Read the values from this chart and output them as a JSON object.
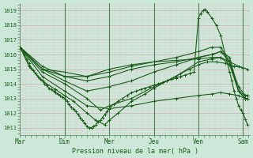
{
  "xlabel": "Pression niveau de la mer( hPa )",
  "background_color": "#cce8d8",
  "plot_bg_color": "#cce8d8",
  "minor_grid_color": "#e8c8d0",
  "major_grid_color": "#d4a8b8",
  "line_color": "#1a5c1a",
  "marker_color": "#1a5c1a",
  "vline_color": "#5a7a5a",
  "ylim": [
    1010.5,
    1019.5
  ],
  "xlim": [
    0.0,
    5.15
  ],
  "yticks": [
    1011,
    1012,
    1013,
    1014,
    1015,
    1016,
    1017,
    1018,
    1019
  ],
  "xtick_labels": [
    "Mar",
    "Dim",
    "Mer",
    "Jeu",
    "Ven",
    "Sam"
  ],
  "xtick_positions": [
    0.0,
    1.0,
    2.0,
    3.0,
    4.0,
    5.0
  ],
  "series": [
    [
      0.0,
      1016.5,
      0.05,
      1016.3,
      0.1,
      1016.0,
      0.15,
      1015.7,
      0.2,
      1015.4,
      0.25,
      1015.1,
      0.3,
      1014.9,
      0.35,
      1014.7,
      0.4,
      1014.5,
      0.45,
      1014.3,
      0.5,
      1014.2,
      0.55,
      1014.0,
      0.6,
      1013.9,
      0.65,
      1013.7,
      0.7,
      1013.6,
      0.75,
      1013.5,
      0.8,
      1013.4,
      0.85,
      1013.3,
      0.9,
      1013.2,
      0.95,
      1013.1,
      1.0,
      1013.0,
      1.05,
      1012.8,
      1.1,
      1012.6,
      1.15,
      1012.4,
      1.2,
      1012.3,
      1.25,
      1012.1,
      1.3,
      1011.9,
      1.35,
      1011.7,
      1.4,
      1011.5,
      1.45,
      1011.3,
      1.5,
      1011.1,
      1.55,
      1011.0,
      1.6,
      1011.0,
      1.65,
      1011.1,
      1.7,
      1011.2,
      1.75,
      1011.4,
      1.8,
      1011.5,
      1.85,
      1011.7,
      1.9,
      1011.9,
      1.95,
      1012.1,
      2.0,
      1012.3,
      2.1,
      1012.6,
      2.2,
      1012.8,
      2.3,
      1013.0,
      2.4,
      1013.2,
      2.5,
      1013.4,
      2.6,
      1013.5,
      2.7,
      1013.6,
      2.8,
      1013.7,
      2.9,
      1013.8,
      3.0,
      1013.9,
      3.1,
      1014.0,
      3.2,
      1014.1,
      3.3,
      1014.2,
      3.4,
      1014.3,
      3.5,
      1014.4,
      3.6,
      1014.5,
      3.7,
      1014.6,
      3.8,
      1014.7,
      3.9,
      1014.8,
      4.0,
      1018.5,
      4.05,
      1018.8,
      4.1,
      1019.0,
      4.15,
      1019.1,
      4.2,
      1018.9,
      4.3,
      1018.5,
      4.4,
      1018.0,
      4.5,
      1017.3,
      4.6,
      1016.0,
      4.7,
      1014.8,
      4.75,
      1014.2,
      4.8,
      1013.5,
      4.85,
      1013.0,
      4.9,
      1012.5,
      4.95,
      1012.2,
      5.0,
      1012.0,
      5.05,
      1011.6,
      5.1,
      1011.2
    ],
    [
      0.0,
      1016.5,
      0.2,
      1015.2,
      0.5,
      1014.2,
      0.8,
      1013.6,
      1.0,
      1013.2,
      1.2,
      1012.8,
      1.5,
      1012.0,
      1.7,
      1011.5,
      1.9,
      1011.2,
      2.0,
      1011.5,
      2.2,
      1012.0,
      2.5,
      1012.8,
      2.8,
      1013.3,
      3.0,
      1013.7,
      3.3,
      1014.2,
      3.6,
      1014.7,
      3.8,
      1015.0,
      4.0,
      1015.3,
      4.2,
      1015.5,
      4.4,
      1015.5,
      4.6,
      1015.4,
      4.8,
      1015.2,
      5.0,
      1015.1
    ],
    [
      0.0,
      1016.5,
      0.5,
      1014.8,
      1.0,
      1014.0,
      1.5,
      1013.0,
      1.8,
      1012.2,
      2.0,
      1012.5,
      2.5,
      1013.0,
      3.0,
      1013.8,
      3.5,
      1014.5,
      4.0,
      1015.5,
      4.3,
      1015.7,
      4.5,
      1015.8,
      4.7,
      1015.5,
      4.9,
      1015.2,
      5.1,
      1015.0
    ],
    [
      0.0,
      1016.5,
      0.5,
      1015.0,
      1.0,
      1014.2,
      1.5,
      1013.5,
      2.0,
      1013.8,
      2.5,
      1014.2,
      3.0,
      1014.8,
      3.5,
      1015.3,
      4.0,
      1015.8,
      4.3,
      1016.0,
      4.5,
      1016.2,
      4.7,
      1015.8,
      4.9,
      1013.5,
      5.05,
      1013.0,
      5.1,
      1013.0
    ],
    [
      0.0,
      1016.5,
      0.5,
      1015.2,
      1.0,
      1014.5,
      1.5,
      1014.5,
      2.0,
      1014.8,
      2.5,
      1015.2,
      3.0,
      1015.5,
      3.5,
      1015.8,
      4.0,
      1016.2,
      4.3,
      1016.5,
      4.5,
      1016.5,
      4.7,
      1015.5,
      4.9,
      1013.8,
      5.05,
      1013.2,
      5.1,
      1013.2
    ],
    [
      0.0,
      1016.5,
      0.5,
      1015.0,
      1.0,
      1014.8,
      1.5,
      1014.5,
      2.0,
      1015.0,
      2.5,
      1015.3,
      3.0,
      1015.5,
      3.5,
      1015.6,
      4.0,
      1015.7,
      4.3,
      1015.8,
      4.5,
      1015.8,
      4.7,
      1015.3,
      4.9,
      1013.5,
      5.05,
      1013.0,
      5.1,
      1013.0
    ],
    [
      0.0,
      1016.5,
      0.5,
      1015.0,
      1.0,
      1014.5,
      1.5,
      1014.2,
      2.0,
      1014.5,
      2.5,
      1015.0,
      3.0,
      1015.3,
      3.5,
      1015.5,
      4.0,
      1015.8,
      4.3,
      1016.0,
      4.5,
      1016.2,
      4.7,
      1015.5,
      4.9,
      1013.5,
      5.05,
      1013.2,
      5.1,
      1013.2
    ],
    [
      0.0,
      1016.5,
      0.5,
      1014.5,
      1.0,
      1013.5,
      1.5,
      1012.5,
      2.0,
      1012.3,
      2.5,
      1012.5,
      3.0,
      1012.8,
      3.5,
      1013.0,
      4.0,
      1013.2,
      4.3,
      1013.3,
      4.5,
      1013.4,
      4.7,
      1013.3,
      4.9,
      1013.2,
      5.05,
      1013.0,
      5.1,
      1013.0
    ]
  ]
}
